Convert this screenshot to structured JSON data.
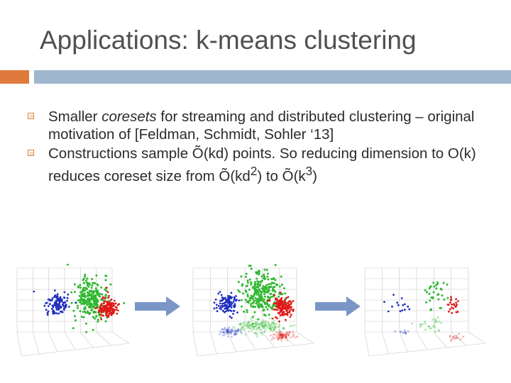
{
  "slide": {
    "title": "Applications: k-means clustering"
  },
  "bullets": [
    {
      "pre": "Smaller ",
      "em": "coresets",
      "post": " for streaming and distributed clustering – original motivation of [Feldman, Schmidt, Sohler ‘13]"
    },
    {
      "line": "Constructions sample Õ(kd) points. So reducing dimension to O(k) reduces coreset size from Õ(kd",
      "sup1": "2",
      "mid": ") to Õ(k",
      "sup2": "3",
      "end": ")"
    }
  ],
  "colors": {
    "title": "#505050",
    "accent_orange": "#e07a3c",
    "accent_blue": "#9fb6cf",
    "cluster_blue": "#1f2fbf",
    "cluster_green": "#2fb82f",
    "cluster_red": "#e01818",
    "arrow": "#7a96c6"
  },
  "figures": [
    {
      "name": "original-3d-scatter",
      "faded_projection": false
    },
    {
      "name": "projected-3d-scatter",
      "faded_projection": true
    },
    {
      "name": "coreset-3d-scatter",
      "faded_projection": true
    }
  ]
}
